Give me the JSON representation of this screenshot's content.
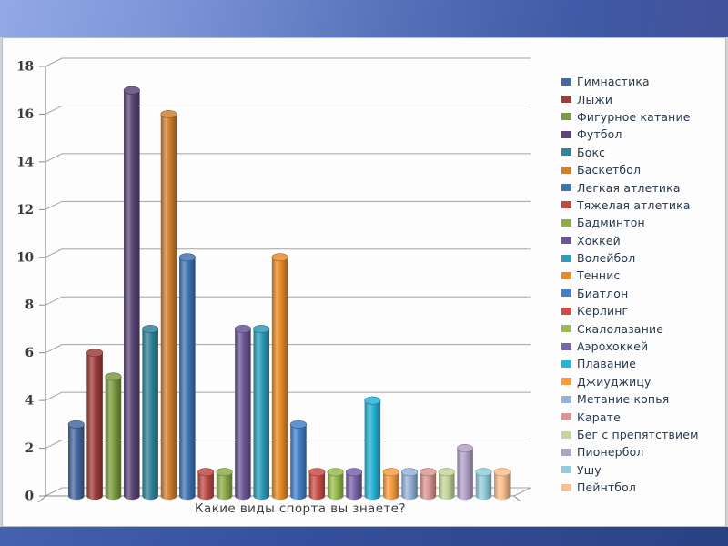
{
  "chart_data": {
    "type": "bar",
    "style": "3d-cylinder",
    "title": "",
    "xlabel": "Какие виды спорта вы знаете?",
    "ylabel": "",
    "ylim": [
      0,
      18
    ],
    "ytick_step": 2,
    "yticks": [
      0,
      2,
      4,
      6,
      8,
      10,
      12,
      14,
      16,
      18
    ],
    "grid": true,
    "legend_position": "right",
    "series": [
      {
        "name": "Гимнастика",
        "value": 3,
        "color": "#46689E"
      },
      {
        "name": "Лыжи",
        "value": 6,
        "color": "#9E3E3B"
      },
      {
        "name": "Фигурное катание",
        "value": 5,
        "color": "#7C9A41"
      },
      {
        "name": "Футбол",
        "value": 17,
        "color": "#5C4677"
      },
      {
        "name": "Бокс",
        "value": 7,
        "color": "#31849B"
      },
      {
        "name": "Баскетбол",
        "value": 16,
        "color": "#D07F2E"
      },
      {
        "name": "Легкая атлетика",
        "value": 10,
        "color": "#3F74B4"
      },
      {
        "name": "Тяжелая атлетика",
        "value": 1,
        "color": "#BD4B45"
      },
      {
        "name": "Бадминтон",
        "value": 1,
        "color": "#8DAC4A"
      },
      {
        "name": "Хоккей",
        "value": 7,
        "color": "#6C5693"
      },
      {
        "name": "Волейбол",
        "value": 7,
        "color": "#2E9CB8"
      },
      {
        "name": "Теннис",
        "value": 10,
        "color": "#E78A25"
      },
      {
        "name": "Биатлон",
        "value": 3,
        "color": "#4380CB"
      },
      {
        "name": "Керлинг",
        "value": 1,
        "color": "#C94E48"
      },
      {
        "name": "Скалолазание",
        "value": 1,
        "color": "#98BC50"
      },
      {
        "name": "Аэрохоккей",
        "value": 1,
        "color": "#7A64AA"
      },
      {
        "name": "Плавание",
        "value": 4,
        "color": "#27B2D6"
      },
      {
        "name": "Джиуджицу",
        "value": 1,
        "color": "#F89C41"
      },
      {
        "name": "Метание копья",
        "value": 1,
        "color": "#95B3D7"
      },
      {
        "name": "Карате",
        "value": 1,
        "color": "#D99694"
      },
      {
        "name": "Бег с препятствием",
        "value": 1,
        "color": "#C3D69B"
      },
      {
        "name": "Пионербол",
        "value": 2,
        "color": "#B2A1C7"
      },
      {
        "name": "Ушу",
        "value": 1,
        "color": "#92CDDC"
      },
      {
        "name": "Пейнтбол",
        "value": 1,
        "color": "#FAC08F"
      }
    ]
  },
  "theme": {
    "top_band_start": "#93A9E6",
    "top_band_end": "#3F5AA6",
    "bottom_band_start": "#4462AE",
    "bottom_band_end": "#2A4183",
    "panel_bg": "#FDFDFD",
    "grid_color": "#A3A3A3",
    "axis_color": "#8C8C8C",
    "tick_label_color": "#3A3A3A",
    "legend_text_color": "#26384E",
    "xlabel_color": "#3F3F3F"
  }
}
